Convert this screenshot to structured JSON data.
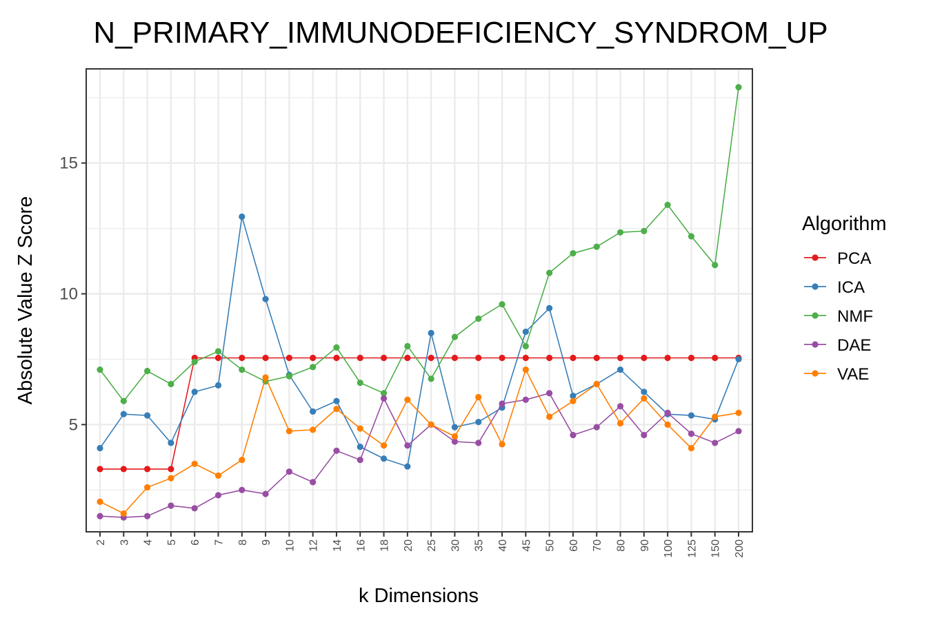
{
  "chart_data": {
    "type": "line",
    "title": "N_PRIMARY_IMMUNODEFICIENCY_SYNDROM_UP",
    "xlabel": "k Dimensions",
    "ylabel": "Absolute Value Z Score",
    "categories": [
      "2",
      "3",
      "4",
      "5",
      "6",
      "7",
      "8",
      "9",
      "10",
      "12",
      "14",
      "16",
      "18",
      "20",
      "25",
      "30",
      "35",
      "40",
      "45",
      "50",
      "60",
      "70",
      "80",
      "90",
      "100",
      "125",
      "150",
      "200"
    ],
    "ylim": [
      0.9,
      18.6
    ],
    "yticks": [
      5,
      10,
      15
    ],
    "ytick_labels": [
      "5",
      "10",
      "15"
    ],
    "grid": true,
    "legend": {
      "title": "Algorithm",
      "position": "right"
    },
    "series": [
      {
        "name": "PCA",
        "color": "#e41a1c",
        "values": [
          3.3,
          3.3,
          3.3,
          3.3,
          7.55,
          7.55,
          7.55,
          7.55,
          7.55,
          7.55,
          7.55,
          7.55,
          7.55,
          7.55,
          7.55,
          7.55,
          7.55,
          7.55,
          7.55,
          7.55,
          7.55,
          7.55,
          7.55,
          7.55,
          7.55,
          7.55,
          7.55,
          7.55
        ]
      },
      {
        "name": "ICA",
        "color": "#377eb8",
        "values": [
          4.1,
          5.4,
          5.35,
          4.3,
          6.25,
          6.5,
          12.95,
          9.8,
          6.9,
          5.5,
          5.9,
          4.15,
          3.7,
          3.4,
          8.5,
          4.9,
          5.1,
          5.65,
          8.55,
          9.45,
          6.1,
          6.55,
          7.1,
          6.25,
          5.4,
          5.35,
          5.2,
          7.5
        ]
      },
      {
        "name": "NMF",
        "color": "#4daf4a",
        "values": [
          7.1,
          5.9,
          7.05,
          6.55,
          7.4,
          7.8,
          7.1,
          6.65,
          6.85,
          7.2,
          7.95,
          6.6,
          6.2,
          8.0,
          6.75,
          8.35,
          9.05,
          9.6,
          8.0,
          10.8,
          11.55,
          11.8,
          12.35,
          12.4,
          13.4,
          12.2,
          11.1,
          17.9
        ]
      },
      {
        "name": "DAE",
        "color": "#984ea3",
        "values": [
          1.5,
          1.45,
          1.5,
          1.9,
          1.8,
          2.3,
          2.5,
          2.35,
          3.2,
          2.8,
          4.0,
          3.65,
          6.0,
          4.2,
          5.0,
          4.35,
          4.3,
          5.8,
          5.95,
          6.2,
          4.6,
          4.9,
          5.7,
          4.6,
          5.45,
          4.65,
          4.3,
          4.75
        ]
      },
      {
        "name": "VAE",
        "color": "#ff7f00",
        "values": [
          2.05,
          1.6,
          2.6,
          2.95,
          3.5,
          3.05,
          3.65,
          6.8,
          4.75,
          4.8,
          5.6,
          4.85,
          4.2,
          5.95,
          5.0,
          4.55,
          6.05,
          4.25,
          7.1,
          5.3,
          5.9,
          6.55,
          5.05,
          6.0,
          5.0,
          4.1,
          5.3,
          5.45
        ]
      }
    ]
  }
}
